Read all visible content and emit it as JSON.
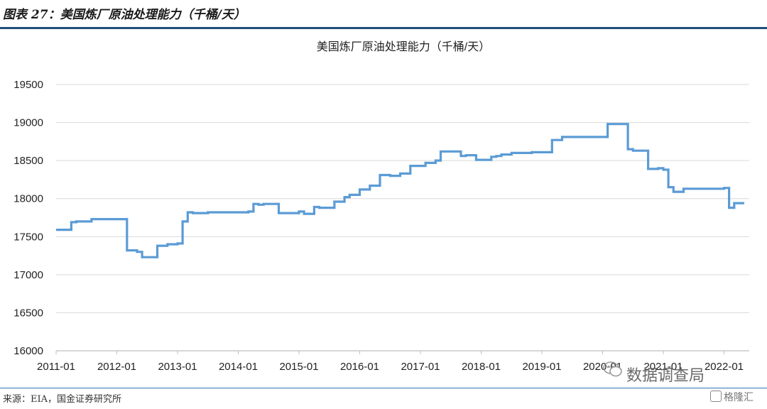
{
  "header": {
    "title": "图表 27：美国炼厂原油处理能力（千桶/天）"
  },
  "footer": {
    "source": "来源：EIA，国金证券研究所"
  },
  "watermark": {
    "text": "数据调查局",
    "badge": "格隆汇"
  },
  "chart_data": {
    "type": "line",
    "title": "美国炼厂原油处理能力（千桶/天）",
    "xlabel": "",
    "ylabel": "",
    "ylim": [
      16000,
      19500
    ],
    "yticks": [
      16000,
      16500,
      17000,
      17500,
      18000,
      18500,
      19000,
      19500
    ],
    "xlim": [
      "2011-01",
      "2022-05"
    ],
    "xticks": [
      "2011-01",
      "2012-01",
      "2013-01",
      "2014-01",
      "2015-01",
      "2016-01",
      "2017-01",
      "2018-01",
      "2019-01",
      "2020-01",
      "2021-01",
      "2022-01"
    ],
    "grid": "horizontal",
    "legend": "none",
    "line_color": "#5b9bd5",
    "series": [
      {
        "step": true,
        "points": [
          [
            "2011-01",
            17590
          ],
          [
            "2011-04",
            17690
          ],
          [
            "2011-05",
            17700
          ],
          [
            "2011-08",
            17730
          ],
          [
            "2012-03",
            17320
          ],
          [
            "2012-05",
            17300
          ],
          [
            "2012-06",
            17230
          ],
          [
            "2012-09",
            17380
          ],
          [
            "2012-11",
            17400
          ],
          [
            "2013-01",
            17410
          ],
          [
            "2013-02",
            17700
          ],
          [
            "2013-03",
            17820
          ],
          [
            "2013-04",
            17810
          ],
          [
            "2013-07",
            17820
          ],
          [
            "2014-03",
            17830
          ],
          [
            "2014-04",
            17930
          ],
          [
            "2014-05",
            17920
          ],
          [
            "2014-06",
            17930
          ],
          [
            "2014-09",
            17810
          ],
          [
            "2015-01",
            17830
          ],
          [
            "2015-02",
            17800
          ],
          [
            "2015-04",
            17890
          ],
          [
            "2015-05",
            17880
          ],
          [
            "2015-08",
            17960
          ],
          [
            "2015-10",
            18020
          ],
          [
            "2015-11",
            18050
          ],
          [
            "2016-01",
            18120
          ],
          [
            "2016-03",
            18170
          ],
          [
            "2016-05",
            18310
          ],
          [
            "2016-07",
            18300
          ],
          [
            "2016-09",
            18330
          ],
          [
            "2016-11",
            18430
          ],
          [
            "2017-02",
            18470
          ],
          [
            "2017-04",
            18500
          ],
          [
            "2017-05",
            18620
          ],
          [
            "2017-09",
            18560
          ],
          [
            "2017-10",
            18570
          ],
          [
            "2017-12",
            18510
          ],
          [
            "2018-03",
            18550
          ],
          [
            "2018-04",
            18560
          ],
          [
            "2018-05",
            18580
          ],
          [
            "2018-07",
            18600
          ],
          [
            "2018-11",
            18610
          ],
          [
            "2019-03",
            18770
          ],
          [
            "2019-05",
            18810
          ],
          [
            "2020-02",
            18980
          ],
          [
            "2020-06",
            18650
          ],
          [
            "2020-07",
            18630
          ],
          [
            "2020-10",
            18390
          ],
          [
            "2020-12",
            18400
          ],
          [
            "2021-01",
            18380
          ],
          [
            "2021-02",
            18150
          ],
          [
            "2021-03",
            18090
          ],
          [
            "2021-05",
            18130
          ],
          [
            "2022-01",
            18140
          ],
          [
            "2022-02",
            17880
          ],
          [
            "2022-03",
            17940
          ],
          [
            "2022-05",
            17940
          ]
        ]
      }
    ]
  }
}
